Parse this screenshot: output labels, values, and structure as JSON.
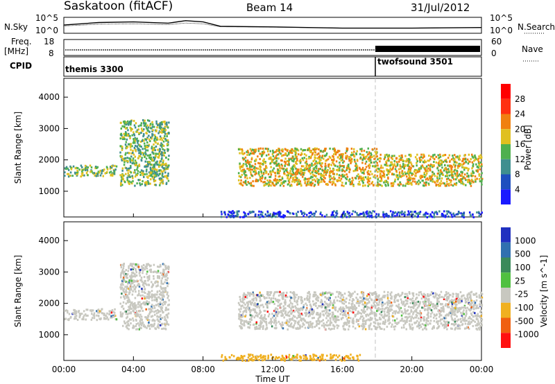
{
  "header": {
    "station": "Saskatoon (fitACF)",
    "beam": "Beam 14",
    "date": "31/Jul/2012"
  },
  "noise_panel": {
    "left_label": "N.Sky",
    "right_label": "N.Search",
    "left_ticks": [
      "10^5",
      "10^0"
    ],
    "right_ticks": [
      "10^5",
      "10^0"
    ]
  },
  "freq_panel": {
    "left_label_line1": "Freq.",
    "left_label_line2": "[MHz]",
    "right_label": "Nave",
    "left_ticks": [
      "18",
      "8"
    ],
    "right_ticks": [
      "60",
      "0"
    ]
  },
  "cpid_panel": {
    "label": "CPID",
    "segments": [
      {
        "name": "themis 3300",
        "start_hour": 0
      },
      {
        "name": "twofsound 3501",
        "start_hour": 18
      }
    ]
  },
  "power_panel": {
    "ylabel": "Slant Range [km]",
    "yticks": [
      "1000",
      "2000",
      "3000",
      "4000"
    ],
    "colorbar_label": "Power [dB]",
    "colorbar_ticks": [
      "4",
      "8",
      "12",
      "16",
      "20",
      "24",
      "28"
    ],
    "colors": [
      "#1a1aff",
      "#1f4fbf",
      "#3f8f8f",
      "#4fb04f",
      "#e0c020",
      "#f08010",
      "#ff3010",
      "#ff0000"
    ]
  },
  "velocity_panel": {
    "ylabel": "Slant Range [km]",
    "yticks": [
      "1000",
      "2000",
      "3000",
      "4000"
    ],
    "colorbar_label": "Velocity [m s^-1]",
    "colorbar_ticks": [
      "1000",
      "500",
      "100",
      "25",
      "-25",
      "-100",
      "-500",
      "-1000"
    ],
    "colors": [
      "#2030c0",
      "#3070b0",
      "#3a8a5a",
      "#50c040",
      "#c8c8c0",
      "#f0b020",
      "#f06010",
      "#ff1010"
    ]
  },
  "xaxis": {
    "label": "Time UT",
    "ticks": [
      "00:00",
      "04:00",
      "08:00",
      "12:00",
      "16:00",
      "20:00",
      "00:00"
    ]
  },
  "chart_data": [
    {
      "type": "heatmap",
      "title": "Power [dB]",
      "xlabel": "Time UT",
      "ylabel": "Slant Range [km]",
      "xlim": [
        0,
        24
      ],
      "ylim": [
        180,
        4600
      ],
      "zlim": [
        0,
        32
      ],
      "regions": [
        {
          "t": [
            0.0,
            3.0
          ],
          "r": [
            1500,
            1850
          ],
          "level": 12
        },
        {
          "t": [
            3.2,
            6.0
          ],
          "r": [
            1200,
            3300
          ],
          "level": 14
        },
        {
          "t": [
            10.0,
            18.0
          ],
          "r": [
            1200,
            2400
          ],
          "level": 16
        },
        {
          "t": [
            18.0,
            24.0
          ],
          "r": [
            1200,
            2200
          ],
          "level": 18
        },
        {
          "t": [
            9.0,
            24.0
          ],
          "r": [
            200,
            400
          ],
          "level": 6
        }
      ]
    },
    {
      "type": "heatmap",
      "title": "Velocity [m s^-1]",
      "xlabel": "Time UT",
      "ylabel": "Slant Range [km]",
      "xlim": [
        0,
        24
      ],
      "ylim": [
        180,
        4600
      ],
      "zlim": [
        -1000,
        1000
      ],
      "regions": [
        {
          "t": [
            0.0,
            3.0
          ],
          "r": [
            1500,
            1850
          ],
          "velocity": 0
        },
        {
          "t": [
            3.2,
            6.0
          ],
          "r": [
            1200,
            3300
          ],
          "velocity": 0
        },
        {
          "t": [
            10.0,
            24.0
          ],
          "r": [
            1200,
            2400
          ],
          "velocity": 0
        },
        {
          "t": [
            9.0,
            17.0
          ],
          "r": [
            200,
            400
          ],
          "velocity": -100
        }
      ]
    },
    {
      "type": "line",
      "title": "N.Sky",
      "x": [
        0,
        2,
        4,
        6,
        7,
        8,
        9,
        12,
        16,
        18,
        20,
        24
      ],
      "y": [
        0.55,
        0.75,
        0.8,
        0.7,
        0.9,
        0.8,
        0.45,
        0.4,
        0.3,
        0.3,
        0.3,
        0.35
      ]
    }
  ]
}
